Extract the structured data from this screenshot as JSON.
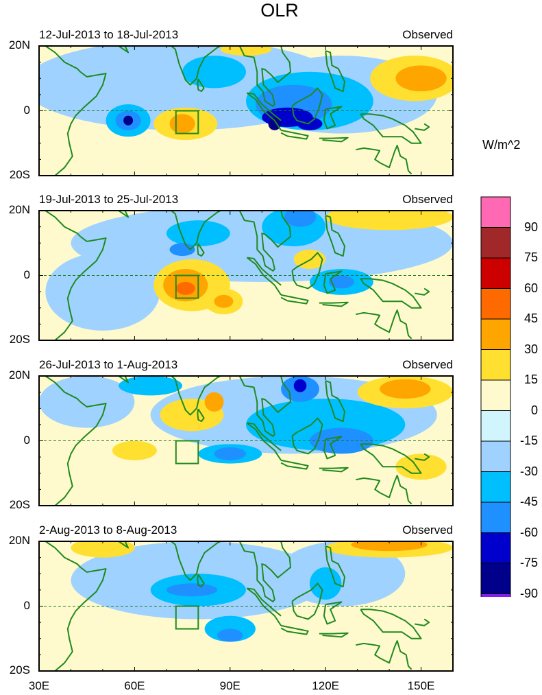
{
  "title": "OLR",
  "units": "W/m^2",
  "panels": [
    {
      "period": "12-Jul-2013 to 18-Jul-2013",
      "label": "Observed"
    },
    {
      "period": "19-Jul-2013 to 25-Jul-2013",
      "label": "Observed"
    },
    {
      "period": "26-Jul-2013 to 1-Aug-2013",
      "label": "Observed"
    },
    {
      "period": "2-Aug-2013 to 8-Aug-2013",
      "label": "Observed"
    }
  ],
  "lat_ticks": [
    "20N",
    "0",
    "20S"
  ],
  "lon_ticks": [
    "30E",
    "60E",
    "90E",
    "120E",
    "150E"
  ],
  "colorbar": {
    "labels": [
      "90",
      "75",
      "60",
      "45",
      "30",
      "15",
      "0",
      "-15",
      "-30",
      "-45",
      "-60",
      "-75",
      "-90"
    ],
    "colors": [
      "#ff69b4",
      "#a02828",
      "#cd0000",
      "#ff6a00",
      "#ffa500",
      "#ffdf30",
      "#fffacd",
      "#d1f5fd",
      "#a0d2ff",
      "#00bfff",
      "#1e90ff",
      "#0000cd",
      "#00008b",
      "#8020f0"
    ]
  },
  "chart_data": {
    "type": "heatmap",
    "title": "OLR",
    "units": "W/m^2",
    "lon_range": [
      30,
      160
    ],
    "lat_range": [
      -20,
      20
    ],
    "levels": [
      -90,
      -75,
      -60,
      -45,
      -30,
      -15,
      0,
      15,
      30,
      45,
      60,
      75,
      90
    ],
    "index_box": {
      "lon": [
        73,
        80
      ],
      "lat": [
        -7,
        0
      ]
    },
    "anomaly_features": [
      [
        [
          75,
          8,
          50,
          14,
          -15
        ],
        [
          125,
          5,
          30,
          12,
          -15
        ],
        [
          115,
          3,
          20,
          9,
          -30
        ],
        [
          85,
          12,
          10,
          5,
          -30
        ],
        [
          58,
          -3,
          7,
          5,
          -30
        ],
        [
          110,
          2,
          12,
          6,
          -45
        ],
        [
          58,
          -3,
          4,
          3,
          -45
        ],
        [
          108,
          -2,
          8,
          3,
          -60
        ],
        [
          115,
          -4,
          4,
          2,
          -60
        ],
        [
          104,
          -4,
          2,
          2,
          -75
        ],
        [
          58,
          -3,
          1.5,
          1.5,
          -75
        ],
        [
          76,
          -4,
          10,
          5,
          15
        ],
        [
          148,
          10,
          14,
          7,
          15
        ],
        [
          95,
          19,
          8,
          2,
          15
        ],
        [
          150,
          10,
          8,
          4,
          30
        ],
        [
          75,
          -4,
          4,
          3,
          30
        ]
      ],
      [
        [
          100,
          10,
          60,
          12,
          -15
        ],
        [
          50,
          -5,
          18,
          12,
          -15
        ],
        [
          80,
          13,
          10,
          4,
          -30
        ],
        [
          110,
          15,
          10,
          6,
          -30
        ],
        [
          125,
          -2,
          10,
          4,
          -30
        ],
        [
          112,
          18,
          5,
          3,
          -45
        ],
        [
          75,
          8,
          4,
          2,
          -45
        ],
        [
          125,
          -2,
          4,
          2,
          -45
        ],
        [
          78,
          -3,
          12,
          8,
          15
        ],
        [
          140,
          18,
          20,
          4,
          15
        ],
        [
          88,
          -8,
          6,
          4,
          15
        ],
        [
          115,
          5,
          5,
          3,
          15
        ],
        [
          76,
          -3,
          7,
          5,
          30
        ],
        [
          88,
          -8,
          3,
          2,
          30
        ],
        [
          76,
          -4,
          3,
          2,
          45
        ]
      ],
      [
        [
          110,
          8,
          45,
          12,
          -15
        ],
        [
          45,
          12,
          15,
          8,
          -15
        ],
        [
          120,
          5,
          25,
          8,
          -30
        ],
        [
          90,
          -4,
          10,
          3,
          -30
        ],
        [
          65,
          17,
          10,
          3,
          -30
        ],
        [
          112,
          16,
          6,
          4,
          -45
        ],
        [
          125,
          0,
          10,
          4,
          -45
        ],
        [
          90,
          -4,
          5,
          2,
          -45
        ],
        [
          112,
          17,
          2,
          2,
          -60
        ],
        [
          78,
          8,
          10,
          5,
          15
        ],
        [
          60,
          -3,
          7,
          3,
          15
        ],
        [
          145,
          15,
          15,
          5,
          15
        ],
        [
          150,
          -8,
          8,
          4,
          15
        ],
        [
          85,
          12,
          3,
          3,
          30
        ],
        [
          145,
          16,
          8,
          3,
          30
        ]
      ],
      [
        [
          80,
          8,
          40,
          12,
          -15
        ],
        [
          125,
          10,
          20,
          10,
          -15
        ],
        [
          80,
          5,
          15,
          5,
          -30
        ],
        [
          90,
          -7,
          8,
          4,
          -30
        ],
        [
          120,
          7,
          5,
          5,
          -30
        ],
        [
          78,
          5,
          8,
          2,
          -45
        ],
        [
          90,
          -9,
          4,
          2,
          -45
        ],
        [
          140,
          18,
          20,
          3,
          15
        ],
        [
          50,
          18,
          10,
          3,
          15
        ],
        [
          140,
          19,
          12,
          2,
          30
        ]
      ]
    ]
  }
}
